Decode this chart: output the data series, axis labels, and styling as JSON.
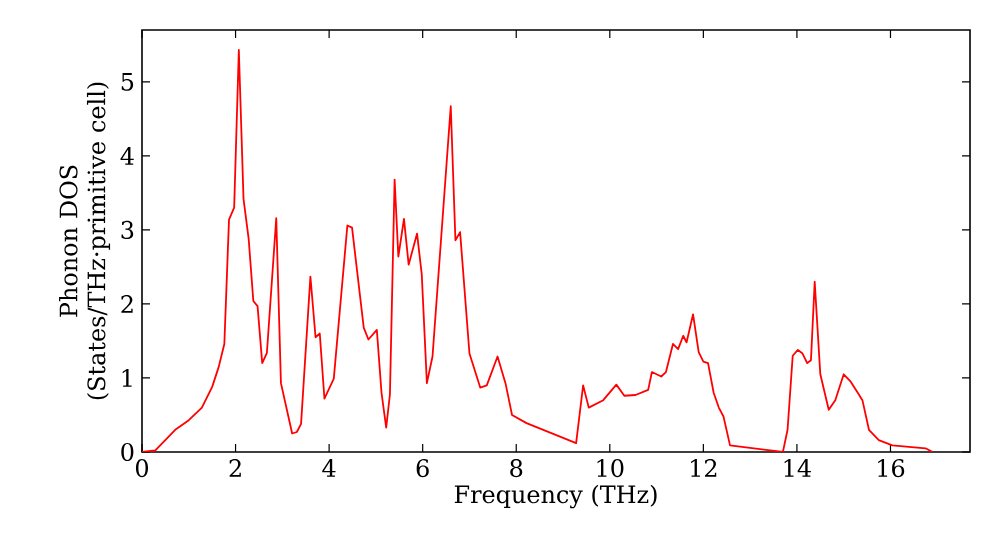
{
  "chart_data": {
    "type": "line",
    "xlabel": "Frequency (THz)",
    "ylabel": "Phonon DOS (States/THz·primitive cell)",
    "xlim": [
      0,
      17.7
    ],
    "ylim": [
      0,
      5.7
    ],
    "xticks": [
      0,
      2,
      4,
      6,
      8,
      10,
      12,
      14,
      16
    ],
    "yticks": [
      0,
      1,
      2,
      3,
      4,
      5
    ],
    "grid": false,
    "line_style": "solid",
    "series": [
      {
        "color": "#ff0000",
        "x": [
          0,
          0.28,
          0.71,
          1.0,
          1.28,
          1.5,
          1.64,
          1.76,
          1.86,
          1.97,
          2.07,
          2.17,
          2.28,
          2.38,
          2.47,
          2.57,
          2.67,
          2.87,
          2.97,
          3.21,
          3.31,
          3.4,
          3.6,
          3.71,
          3.8,
          3.9,
          4.1,
          4.39,
          4.49,
          4.74,
          4.84,
          5.02,
          5.12,
          5.22,
          5.3,
          5.4,
          5.48,
          5.6,
          5.7,
          5.88,
          5.98,
          6.09,
          6.21,
          6.6,
          6.7,
          6.8,
          7.0,
          7.23,
          7.37,
          7.6,
          7.77,
          7.91,
          8.22,
          9.28,
          9.43,
          9.55,
          9.86,
          10.14,
          10.31,
          10.55,
          10.82,
          10.9,
          11.1,
          11.2,
          11.35,
          11.46,
          11.57,
          11.64,
          11.78,
          11.9,
          12.0,
          12.1,
          12.22,
          12.33,
          12.43,
          12.57,
          13.7,
          13.8,
          13.91,
          14.02,
          14.12,
          14.22,
          14.3,
          14.38,
          14.5,
          14.68,
          14.82,
          15.0,
          15.15,
          15.3,
          15.4,
          15.54,
          15.75,
          16.04,
          16.75,
          16.9
        ],
        "values": [
          0,
          0.02,
          0.3,
          0.43,
          0.6,
          0.88,
          1.15,
          1.46,
          3.14,
          3.3,
          5.43,
          3.42,
          2.88,
          2.04,
          1.97,
          1.2,
          1.34,
          3.16,
          0.93,
          0.25,
          0.27,
          0.38,
          2.37,
          1.55,
          1.6,
          0.72,
          0.99,
          3.06,
          3.03,
          1.68,
          1.52,
          1.65,
          0.8,
          0.33,
          0.78,
          3.68,
          2.64,
          3.15,
          2.53,
          2.95,
          2.4,
          0.93,
          1.29,
          4.67,
          2.86,
          2.97,
          1.33,
          0.87,
          0.9,
          1.29,
          0.93,
          0.5,
          0.39,
          0.12,
          0.9,
          0.6,
          0.7,
          0.91,
          0.76,
          0.77,
          0.84,
          1.08,
          1.02,
          1.08,
          1.46,
          1.39,
          1.57,
          1.48,
          1.86,
          1.35,
          1.22,
          1.2,
          0.8,
          0.6,
          0.48,
          0.09,
          0.0,
          0.3,
          1.3,
          1.38,
          1.33,
          1.2,
          1.24,
          2.3,
          1.05,
          0.57,
          0.7,
          1.05,
          0.95,
          0.8,
          0.7,
          0.3,
          0.16,
          0.09,
          0.05,
          0.0
        ]
      }
    ]
  }
}
